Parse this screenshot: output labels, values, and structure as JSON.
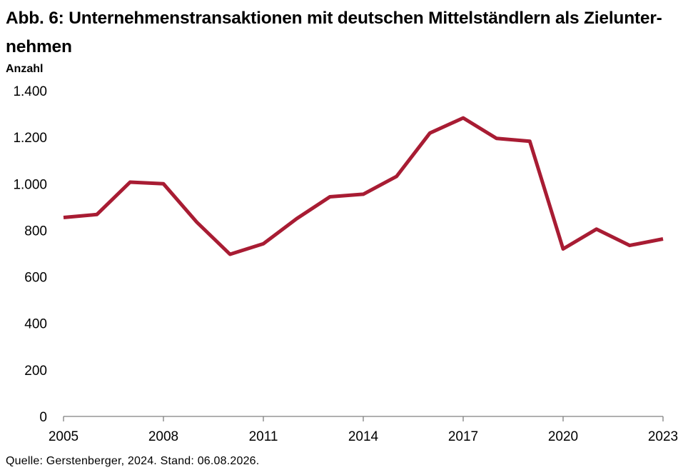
{
  "chart_data": {
    "type": "line",
    "title": "Abb. 6: Unternehmenstransaktionen mit deutschen Mittelständlern als Zielunter-nehmen",
    "title_lines": [
      "Abb. 6: Unternehmenstransaktionen mit deutschen Mittelständlern als Zielunter-",
      "nehmen"
    ],
    "ylabel": "Anzahl",
    "xlabel": "",
    "source": "Quelle: Gerstenberger, 2024. Stand: 06.08.2026.",
    "ylim": [
      0,
      1400
    ],
    "xlim": [
      2005,
      2023
    ],
    "y_ticks": [
      0,
      200,
      400,
      600,
      800,
      1000,
      1200,
      1400
    ],
    "y_tick_labels": [
      "0",
      "200",
      "400",
      "600",
      "800",
      "1.000",
      "1.200",
      "1.400"
    ],
    "x_ticks": [
      2005,
      2008,
      2011,
      2014,
      2017,
      2020,
      2023
    ],
    "x_tick_labels": [
      "2005",
      "2008",
      "2011",
      "2014",
      "2017",
      "2020",
      "2023"
    ],
    "grid": false,
    "line_color": "#A81C33",
    "series": [
      {
        "x": [
          2005,
          2006,
          2007,
          2008,
          2009,
          2010,
          2011,
          2012,
          2013,
          2014,
          2015,
          2016,
          2017,
          2018,
          2019,
          2020,
          2021,
          2022,
          2023
        ],
        "values": [
          855,
          868,
          1007,
          1000,
          835,
          697,
          742,
          850,
          944,
          955,
          1032,
          1218,
          1283,
          1195,
          1183,
          720,
          805,
          735,
          763
        ]
      }
    ]
  }
}
